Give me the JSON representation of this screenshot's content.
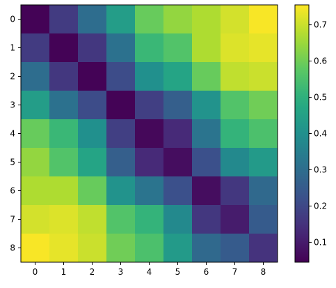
{
  "chart_data": {
    "type": "heatmap",
    "title": "",
    "xlabel": "",
    "ylabel": "",
    "x": [
      "0",
      "1",
      "2",
      "3",
      "4",
      "5",
      "6",
      "7",
      "8"
    ],
    "y": [
      "0",
      "1",
      "2",
      "3",
      "4",
      "5",
      "6",
      "7",
      "8"
    ],
    "values": [
      [
        0.05,
        0.17,
        0.3,
        0.44,
        0.59,
        0.64,
        0.67,
        0.71,
        0.75
      ],
      [
        0.17,
        0.05,
        0.16,
        0.31,
        0.52,
        0.56,
        0.67,
        0.72,
        0.73
      ],
      [
        0.3,
        0.16,
        0.05,
        0.21,
        0.4,
        0.46,
        0.59,
        0.69,
        0.7
      ],
      [
        0.44,
        0.31,
        0.21,
        0.05,
        0.18,
        0.26,
        0.41,
        0.56,
        0.6
      ],
      [
        0.59,
        0.52,
        0.4,
        0.18,
        0.06,
        0.13,
        0.32,
        0.51,
        0.55
      ],
      [
        0.64,
        0.56,
        0.46,
        0.26,
        0.13,
        0.07,
        0.22,
        0.38,
        0.43
      ],
      [
        0.67,
        0.67,
        0.59,
        0.41,
        0.32,
        0.22,
        0.07,
        0.16,
        0.29
      ],
      [
        0.71,
        0.72,
        0.69,
        0.56,
        0.51,
        0.38,
        0.16,
        0.1,
        0.25
      ],
      [
        0.75,
        0.73,
        0.7,
        0.6,
        0.55,
        0.43,
        0.29,
        0.25,
        0.15
      ]
    ],
    "colorbar": {
      "colormap": "viridis",
      "vmin": 0.045,
      "vmax": 0.755,
      "ticks": [
        0.1,
        0.2,
        0.3,
        0.4,
        0.5,
        0.6,
        0.7
      ],
      "tick_labels": [
        "0.1",
        "0.2",
        "0.3",
        "0.4",
        "0.5",
        "0.6",
        "0.7"
      ]
    },
    "grid": false
  }
}
